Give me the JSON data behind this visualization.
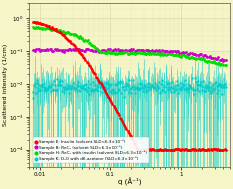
{
  "title": "",
  "xlabel": "q (Å⁻¹)",
  "ylabel": "Scattered intensity (1/cm)",
  "background_color": "#f5f5c8",
  "legend_entries": [
    "Sample E: Insulin (solvent SLD=6.3×10⁻⁶)",
    "Sample B: ReC₄ (solvent SLD=6.3×10⁻⁶)",
    "Sample H: ReC₄ with insulin (solvent SLD=6.3×10⁻⁶)",
    "Sample K: D₂O with d6-acetone (SLD=6.3×10⁻⁶)"
  ],
  "colors": [
    "#ff0000",
    "#cc00cc",
    "#00dd00",
    "#00cccc"
  ],
  "xlim": [
    0.007,
    5.0
  ],
  "ylim": [
    3e-05,
    3.0
  ],
  "grid_color": "#cccc99",
  "legend_fontsize": 3.0,
  "tick_fontsize": 4.5
}
